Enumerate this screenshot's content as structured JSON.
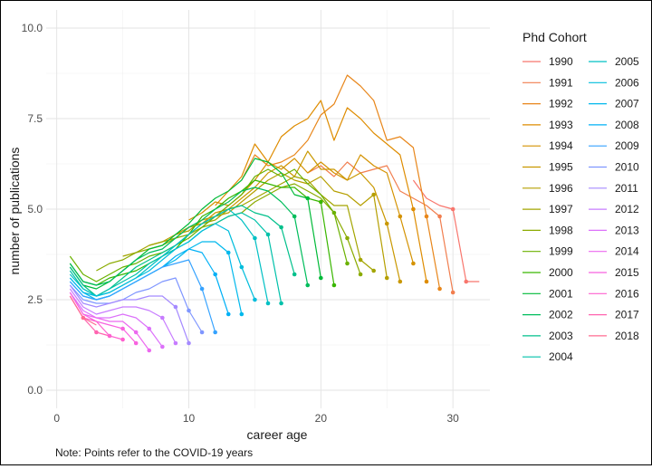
{
  "chart_data": {
    "type": "line",
    "title": "",
    "xlabel": "career age",
    "ylabel": "number of publications",
    "xlim": [
      -0.8,
      32.8
    ],
    "ylim": [
      -0.5,
      10.5
    ],
    "xticks": [
      0,
      10,
      20,
      30
    ],
    "xtick_labels": [
      "0",
      "10",
      "20",
      "30"
    ],
    "yticks": [
      0.0,
      2.5,
      5.0,
      7.5,
      10.0
    ],
    "ytick_labels": [
      "0.0",
      "2.5",
      "5.0",
      "7.5",
      "10.0"
    ],
    "grid": true,
    "legend_title": "Phd Cohort",
    "legend_position": "right",
    "note": "Note: Points refer to the COVID-19 years",
    "series": [
      {
        "name": "1990",
        "color": "#F8766D",
        "x": [
          27,
          28,
          29,
          30,
          31,
          32
        ],
        "y": [
          5.8,
          5.3,
          5.1,
          5.0,
          3.0,
          3.0
        ],
        "points": [
          [
            30,
            5.0
          ],
          [
            31,
            3.0
          ]
        ]
      },
      {
        "name": "1991",
        "color": "#F17E4F",
        "x": [
          19,
          20,
          21,
          22,
          23,
          24,
          25,
          26,
          27,
          28,
          29,
          30
        ],
        "y": [
          6.0,
          6.2,
          5.9,
          6.3,
          6.0,
          6.1,
          6.2,
          5.5,
          5.3,
          5.1,
          4.8,
          2.7
        ],
        "points": [
          [
            29,
            4.8
          ],
          [
            30,
            2.7
          ]
        ]
      },
      {
        "name": "1992",
        "color": "#E8861A",
        "x": [
          14,
          15,
          16,
          17,
          18,
          19,
          20,
          21,
          22,
          23,
          24,
          25,
          26,
          27,
          28,
          29
        ],
        "y": [
          5.8,
          6.5,
          6.2,
          6.3,
          6.5,
          6.9,
          7.6,
          7.9,
          8.7,
          8.4,
          8.0,
          6.9,
          7.0,
          6.7,
          4.8,
          2.8
        ],
        "points": [
          [
            28,
            4.8
          ],
          [
            29,
            2.8
          ]
        ]
      },
      {
        "name": "1993",
        "color": "#DE8C00",
        "x": [
          12,
          13,
          14,
          15,
          16,
          17,
          18,
          19,
          20,
          21,
          22,
          23,
          24,
          25,
          26,
          27,
          28
        ],
        "y": [
          5.1,
          5.5,
          5.9,
          6.8,
          6.3,
          7.0,
          7.3,
          7.5,
          8.0,
          6.9,
          7.8,
          7.5,
          7.1,
          6.8,
          6.5,
          5.0,
          3.0
        ],
        "points": [
          [
            27,
            5.0
          ],
          [
            28,
            3.0
          ]
        ]
      },
      {
        "name": "1994",
        "color": "#D49200",
        "x": [
          10,
          11,
          12,
          13,
          14,
          15,
          16,
          17,
          18,
          19,
          20,
          21,
          22,
          23,
          24,
          25,
          26,
          27
        ],
        "y": [
          4.7,
          4.9,
          5.2,
          5.1,
          5.4,
          5.8,
          6.3,
          6.1,
          6.4,
          6.0,
          6.3,
          6.0,
          5.8,
          6.5,
          6.2,
          6.0,
          4.8,
          3.5
        ],
        "points": [
          [
            26,
            4.8
          ],
          [
            27,
            3.5
          ]
        ]
      },
      {
        "name": "1995",
        "color": "#C99800",
        "x": [
          9,
          10,
          11,
          12,
          13,
          14,
          15,
          16,
          17,
          18,
          19,
          20,
          21,
          22,
          23,
          24,
          25,
          26
        ],
        "y": [
          4.3,
          4.5,
          4.6,
          4.9,
          5.0,
          5.3,
          5.6,
          6.0,
          6.2,
          5.9,
          6.6,
          6.1,
          6.1,
          5.8,
          6.0,
          5.6,
          4.6,
          3.0
        ],
        "points": [
          [
            25,
            4.6
          ],
          [
            26,
            3.0
          ]
        ]
      },
      {
        "name": "1996",
        "color": "#B59F00",
        "x": [
          7,
          8,
          9,
          10,
          11,
          12,
          13,
          14,
          15,
          16,
          17,
          18,
          19,
          20,
          21,
          22,
          23,
          24,
          25
        ],
        "y": [
          4.0,
          4.1,
          4.3,
          4.4,
          4.7,
          4.8,
          4.9,
          5.2,
          5.5,
          5.8,
          6.0,
          5.8,
          5.7,
          5.9,
          5.5,
          5.4,
          5.1,
          5.4,
          3.1
        ],
        "points": [
          [
            24,
            5.4
          ],
          [
            25,
            3.1
          ]
        ]
      },
      {
        "name": "1997",
        "color": "#A3A500",
        "x": [
          5,
          6,
          7,
          8,
          9,
          10,
          11,
          12,
          13,
          14,
          15,
          16,
          17,
          18,
          19,
          20,
          21,
          22,
          23,
          24
        ],
        "y": [
          3.7,
          3.8,
          4.0,
          4.1,
          4.2,
          4.5,
          4.6,
          4.7,
          5.0,
          5.1,
          5.3,
          5.5,
          5.7,
          5.9,
          5.8,
          5.4,
          5.1,
          5.1,
          3.6,
          3.3
        ],
        "points": [
          [
            23,
            3.6
          ],
          [
            24,
            3.3
          ]
        ]
      },
      {
        "name": "1998",
        "color": "#8BAB00",
        "x": [
          3,
          4,
          5,
          6,
          7,
          8,
          9,
          10,
          11,
          12,
          13,
          14,
          15,
          16,
          17,
          18,
          19,
          20,
          21,
          22,
          23
        ],
        "y": [
          3.3,
          3.5,
          3.6,
          3.8,
          3.9,
          4.0,
          4.2,
          4.3,
          4.5,
          4.6,
          4.8,
          4.9,
          5.2,
          5.4,
          5.6,
          5.7,
          5.5,
          5.3,
          4.9,
          4.2,
          3.2
        ],
        "points": [
          [
            22,
            4.2
          ],
          [
            23,
            3.2
          ]
        ]
      },
      {
        "name": "1999",
        "color": "#6BB100",
        "x": [
          1,
          2,
          3,
          4,
          5,
          6,
          7,
          8,
          9,
          10,
          11,
          12,
          13,
          14,
          15,
          16,
          17,
          18,
          19,
          20,
          21,
          22
        ],
        "y": [
          3.7,
          3.2,
          3.0,
          3.2,
          3.4,
          3.5,
          3.7,
          3.8,
          4.0,
          4.2,
          4.5,
          4.8,
          5.1,
          5.4,
          5.9,
          6.1,
          5.9,
          6.1,
          5.7,
          5.4,
          4.9,
          3.5
        ],
        "points": [
          [
            21,
            4.9
          ],
          [
            22,
            3.5
          ]
        ]
      },
      {
        "name": "2000",
        "color": "#39B600",
        "x": [
          1,
          2,
          3,
          4,
          5,
          6,
          7,
          8,
          9,
          10,
          11,
          12,
          13,
          14,
          15,
          16,
          17,
          18,
          19,
          20,
          21
        ],
        "y": [
          3.5,
          3.0,
          2.9,
          3.1,
          3.2,
          3.3,
          3.5,
          3.7,
          3.9,
          4.3,
          4.8,
          5.0,
          5.3,
          5.5,
          5.8,
          5.7,
          5.6,
          5.6,
          5.3,
          5.2,
          2.9
        ],
        "points": [
          [
            20,
            5.2
          ],
          [
            21,
            2.9
          ]
        ]
      },
      {
        "name": "2001",
        "color": "#00BA38",
        "x": [
          1,
          2,
          3,
          4,
          5,
          6,
          7,
          8,
          9,
          10,
          11,
          12,
          13,
          14,
          15,
          16,
          17,
          18,
          19,
          20
        ],
        "y": [
          3.4,
          2.9,
          2.8,
          3.0,
          3.3,
          3.6,
          3.9,
          4.0,
          4.3,
          4.6,
          5.0,
          5.3,
          5.5,
          5.8,
          6.4,
          6.3,
          6.0,
          5.4,
          5.3,
          3.1
        ],
        "points": [
          [
            19,
            5.3
          ],
          [
            20,
            3.1
          ]
        ]
      },
      {
        "name": "2002",
        "color": "#00BD5C",
        "x": [
          1,
          2,
          3,
          4,
          5,
          6,
          7,
          8,
          9,
          10,
          11,
          12,
          13,
          14,
          15,
          16,
          17,
          18,
          19
        ],
        "y": [
          3.5,
          3.0,
          2.9,
          3.0,
          3.3,
          3.6,
          3.8,
          3.9,
          4.2,
          4.5,
          4.7,
          5.0,
          5.2,
          5.5,
          5.6,
          5.5,
          5.2,
          4.8,
          2.9
        ],
        "points": [
          [
            18,
            4.8
          ],
          [
            19,
            2.9
          ]
        ]
      },
      {
        "name": "2003",
        "color": "#00C08B",
        "x": [
          1,
          2,
          3,
          4,
          5,
          6,
          7,
          8,
          9,
          10,
          11,
          12,
          13,
          14,
          15,
          16,
          17,
          18
        ],
        "y": [
          3.4,
          2.9,
          2.6,
          2.8,
          3.1,
          3.4,
          3.6,
          3.8,
          4.0,
          4.3,
          4.6,
          4.8,
          5.0,
          5.1,
          4.9,
          4.8,
          4.5,
          3.2
        ],
        "points": [
          [
            17,
            4.5
          ],
          [
            18,
            3.2
          ]
        ]
      },
      {
        "name": "2004",
        "color": "#00C1AA",
        "x": [
          1,
          2,
          3,
          4,
          5,
          6,
          7,
          8,
          9,
          10,
          11,
          12,
          13,
          14,
          15,
          16,
          17
        ],
        "y": [
          3.3,
          2.8,
          2.6,
          2.8,
          3.0,
          3.2,
          3.5,
          3.7,
          3.9,
          4.1,
          4.4,
          4.6,
          4.8,
          4.9,
          4.7,
          4.3,
          2.4
        ],
        "points": [
          [
            16,
            4.3
          ],
          [
            17,
            2.4
          ]
        ]
      },
      {
        "name": "2005",
        "color": "#00C0C4",
        "x": [
          1,
          2,
          3,
          4,
          5,
          6,
          7,
          8,
          9,
          10,
          11,
          12,
          13,
          14,
          15,
          16
        ],
        "y": [
          3.2,
          2.8,
          2.6,
          2.7,
          2.9,
          3.1,
          3.4,
          3.7,
          4.0,
          4.3,
          4.6,
          4.8,
          5.0,
          4.7,
          4.2,
          2.4
        ],
        "points": [
          [
            15,
            4.2
          ],
          [
            16,
            2.4
          ]
        ]
      },
      {
        "name": "2006",
        "color": "#00BDDC",
        "x": [
          1,
          2,
          3,
          4,
          5,
          6,
          7,
          8,
          9,
          10,
          11,
          12,
          13,
          14,
          15
        ],
        "y": [
          3.1,
          2.7,
          2.6,
          2.7,
          2.9,
          3.1,
          3.3,
          3.6,
          3.9,
          4.1,
          4.4,
          4.6,
          4.4,
          3.4,
          2.5
        ],
        "points": [
          [
            14,
            3.4
          ],
          [
            15,
            2.5
          ]
        ]
      },
      {
        "name": "2007",
        "color": "#00B8EC",
        "x": [
          1,
          2,
          3,
          4,
          5,
          6,
          7,
          8,
          9,
          10,
          11,
          12,
          13,
          14
        ],
        "y": [
          3.1,
          2.7,
          2.5,
          2.6,
          2.8,
          3.0,
          3.2,
          3.4,
          3.6,
          3.9,
          4.1,
          4.1,
          3.8,
          2.1
        ],
        "points": [
          [
            13,
            3.8
          ],
          [
            14,
            2.1
          ]
        ]
      },
      {
        "name": "2008",
        "color": "#00B0F6",
        "x": [
          1,
          2,
          3,
          4,
          5,
          6,
          7,
          8,
          9,
          10,
          11,
          12,
          13
        ],
        "y": [
          3.0,
          2.6,
          2.5,
          2.6,
          2.8,
          3.0,
          3.2,
          3.4,
          3.7,
          3.9,
          3.8,
          3.2,
          2.1
        ],
        "points": [
          [
            12,
            3.2
          ],
          [
            13,
            2.1
          ]
        ]
      },
      {
        "name": "2009",
        "color": "#35A2FF",
        "x": [
          1,
          2,
          3,
          4,
          5,
          6,
          7,
          8,
          9,
          10,
          11,
          12
        ],
        "y": [
          3.0,
          2.6,
          2.5,
          2.6,
          2.8,
          3.0,
          3.2,
          3.4,
          3.5,
          3.6,
          2.8,
          1.6
        ],
        "points": [
          [
            11,
            2.8
          ],
          [
            12,
            1.6
          ]
        ]
      },
      {
        "name": "2010",
        "color": "#7F96FF",
        "x": [
          1,
          2,
          3,
          4,
          5,
          6,
          7,
          8,
          9,
          10,
          11
        ],
        "y": [
          2.9,
          2.5,
          2.4,
          2.4,
          2.5,
          2.7,
          2.8,
          3.0,
          3.1,
          2.2,
          1.6
        ],
        "points": [
          [
            10,
            2.2
          ],
          [
            11,
            1.6
          ]
        ]
      },
      {
        "name": "2011",
        "color": "#A58AFF",
        "x": [
          1,
          2,
          3,
          4,
          5,
          6,
          7,
          8,
          9,
          10
        ],
        "y": [
          2.9,
          2.4,
          2.3,
          2.4,
          2.5,
          2.5,
          2.6,
          2.6,
          2.3,
          1.3
        ],
        "points": [
          [
            9,
            2.3
          ],
          [
            10,
            1.3
          ]
        ]
      },
      {
        "name": "2012",
        "color": "#C77CFF",
        "x": [
          1,
          2,
          3,
          4,
          5,
          6,
          7,
          8,
          9
        ],
        "y": [
          2.8,
          2.3,
          2.1,
          2.2,
          2.3,
          2.3,
          2.2,
          2.0,
          1.3
        ],
        "points": [
          [
            8,
            2.0
          ],
          [
            9,
            1.3
          ]
        ]
      },
      {
        "name": "2013",
        "color": "#DC71FA",
        "x": [
          1,
          2,
          3,
          4,
          5,
          6,
          7,
          8
        ],
        "y": [
          2.7,
          2.2,
          2.0,
          2.0,
          2.1,
          2.0,
          1.7,
          1.2
        ],
        "points": [
          [
            7,
            1.7
          ],
          [
            8,
            1.2
          ]
        ]
      },
      {
        "name": "2014",
        "color": "#EC69EF",
        "x": [
          1,
          2,
          3,
          4,
          5,
          6,
          7
        ],
        "y": [
          2.7,
          2.1,
          2.0,
          1.9,
          1.9,
          1.6,
          1.1
        ],
        "points": [
          [
            6,
            1.6
          ],
          [
            7,
            1.1
          ]
        ]
      },
      {
        "name": "2015",
        "color": "#F862DF",
        "x": [
          1,
          2,
          3,
          4,
          5,
          6
        ],
        "y": [
          2.7,
          2.1,
          1.9,
          1.8,
          1.7,
          1.3
        ],
        "points": [
          [
            5,
            1.7
          ],
          [
            6,
            1.3
          ]
        ]
      },
      {
        "name": "2016",
        "color": "#FE61CF",
        "x": [
          1,
          2,
          3,
          4,
          5
        ],
        "y": [
          2.6,
          2.0,
          1.9,
          1.5,
          1.4
        ],
        "points": [
          [
            4,
            1.5
          ],
          [
            5,
            1.4
          ]
        ]
      },
      {
        "name": "2017",
        "color": "#FF64B0",
        "x": [
          1,
          2,
          3,
          4
        ],
        "y": [
          2.6,
          2.0,
          1.6,
          1.5
        ],
        "points": [
          [
            3,
            1.6
          ]
        ]
      },
      {
        "name": "2018",
        "color": "#FF6C91",
        "x": [
          1,
          2,
          3
        ],
        "y": [
          2.6,
          2.0,
          1.8
        ],
        "points": [
          [
            2,
            2.0
          ]
        ]
      }
    ]
  }
}
